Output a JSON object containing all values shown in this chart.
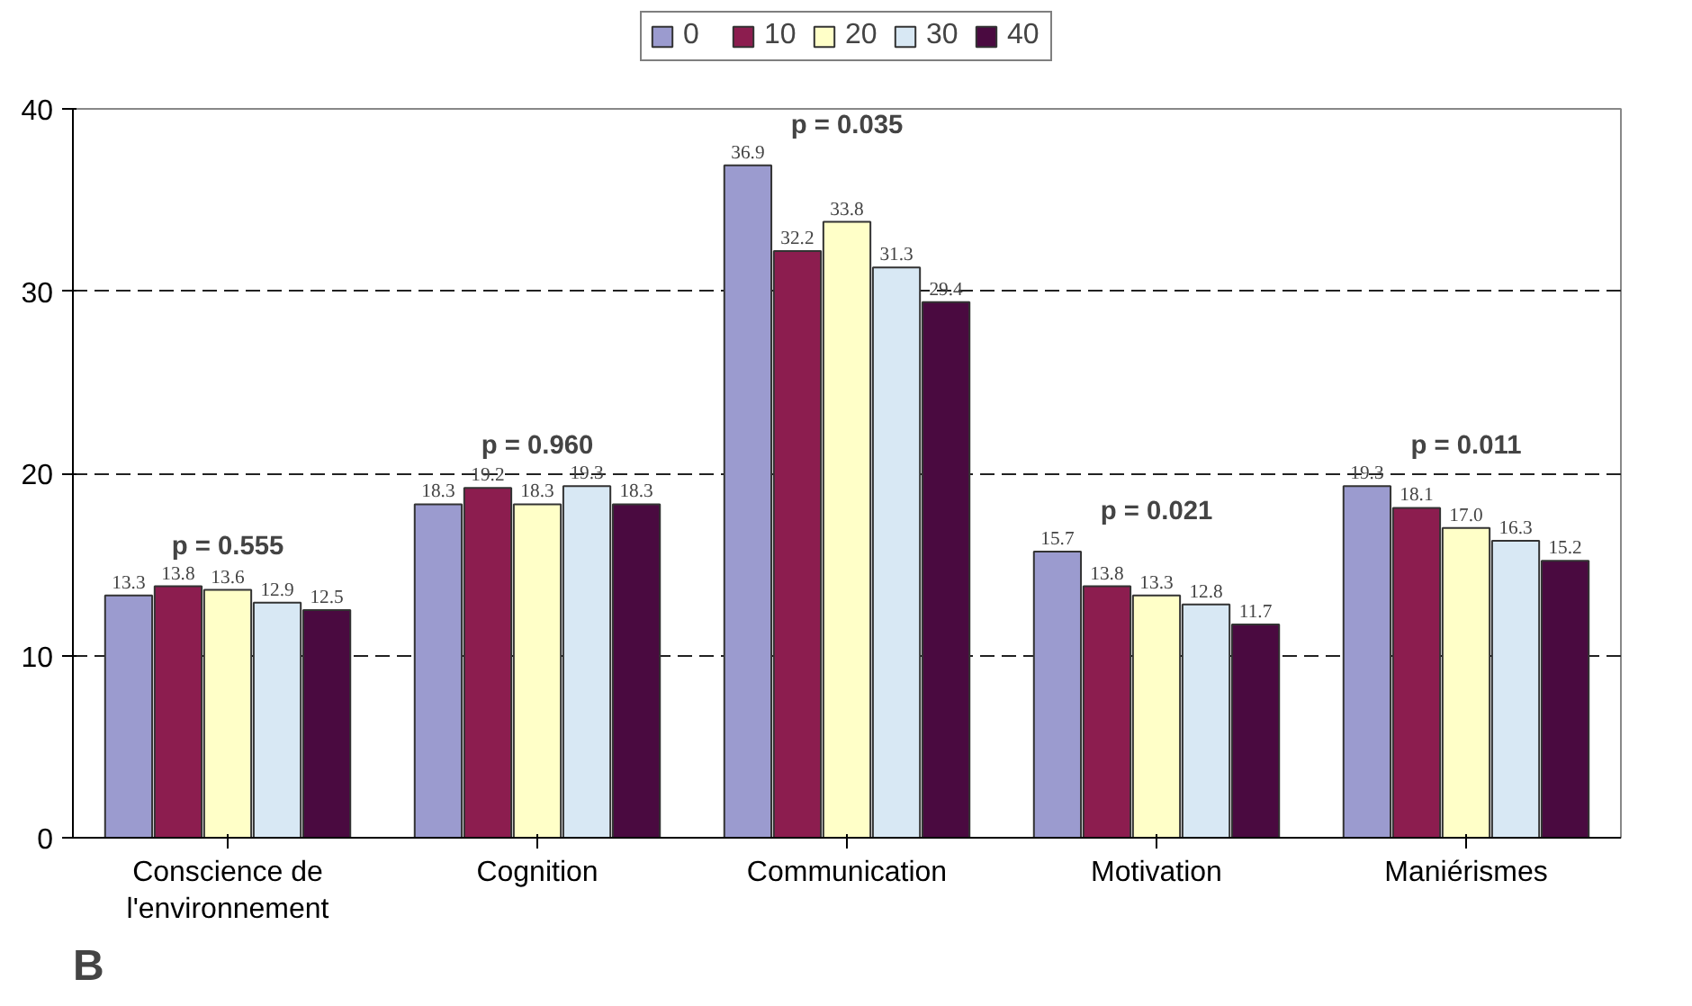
{
  "chart_data": {
    "type": "bar",
    "categories": [
      "Conscience de l'environnement",
      "Cognition",
      "Communication",
      "Motivation",
      "Maniérismes"
    ],
    "series": [
      {
        "name": "0",
        "color": "#9b9bcf",
        "values": [
          13.3,
          18.3,
          36.9,
          15.7,
          19.3
        ],
        "value_labels": [
          "13.3",
          "18.3",
          "36.9",
          "15.7",
          "19.3"
        ]
      },
      {
        "name": "10",
        "color": "#8c1d4f",
        "values": [
          13.8,
          19.2,
          32.2,
          13.8,
          18.1
        ],
        "value_labels": [
          "13.8",
          "19.2",
          "32.2",
          "13.8",
          "18.1"
        ]
      },
      {
        "name": "20",
        "color": "#ffffc8",
        "values": [
          13.6,
          18.3,
          33.8,
          13.3,
          17.0
        ],
        "value_labels": [
          "13.6",
          "18.3",
          "33.8",
          "13.3",
          "17.0"
        ]
      },
      {
        "name": "30",
        "color": "#d8e8f4",
        "values": [
          12.9,
          19.3,
          31.3,
          12.8,
          16.3
        ],
        "value_labels": [
          "12.9",
          "19.3",
          "31.3",
          "12.8",
          "16.3"
        ]
      },
      {
        "name": "40",
        "color": "#4a0a40",
        "values": [
          12.5,
          18.3,
          29.4,
          11.7,
          15.2
        ],
        "value_labels": [
          "12.5",
          "18.3",
          "29.4",
          "11.7",
          "15.2"
        ]
      }
    ],
    "ylim": [
      0,
      40
    ],
    "yticks": [
      0,
      10,
      20,
      30,
      40
    ],
    "grid": "y",
    "legend": "top",
    "annotations": [
      "p = 0.555",
      "p = 0.960",
      "p = 0.035",
      "p = 0.021",
      "p = 0.011",
      "B"
    ]
  }
}
